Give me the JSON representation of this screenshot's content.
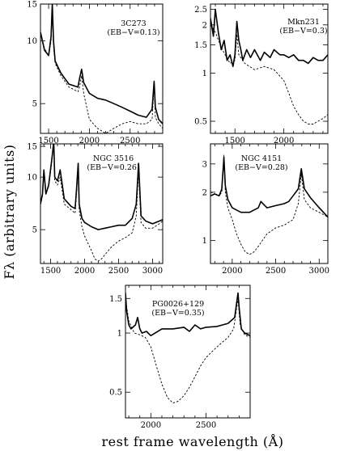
{
  "figure": {
    "ylabel": "Fλ (arbitrary units)",
    "xlabel": "rest frame wavelength (Å)"
  },
  "chart_data": [
    {
      "type": "line",
      "scale": "log-y",
      "object": "3C273",
      "ebv_text": "(EB−V=0.13)",
      "xlim": [
        1400,
        2900
      ],
      "ylim": [
        3.6,
        15
      ],
      "xticks": [
        1500,
        2000,
        2500
      ],
      "yticks": [
        5,
        10,
        15
      ],
      "series": [
        {
          "style": "solid",
          "x": [
            1400,
            1450,
            1500,
            1530,
            1545,
            1560,
            1580,
            1650,
            1750,
            1860,
            1880,
            1905,
            1930,
            2000,
            2100,
            2200,
            2300,
            2400,
            2500,
            2600,
            2700,
            2770,
            2795,
            2810,
            2850,
            2900
          ],
          "y": [
            11,
            9,
            8.5,
            10.5,
            15,
            10,
            8,
            7,
            6.2,
            6,
            6.6,
            7.3,
            6.3,
            5.6,
            5.3,
            5.2,
            5.0,
            4.8,
            4.6,
            4.4,
            4.3,
            4.7,
            6.4,
            4.8,
            4.2,
            4.0
          ]
        },
        {
          "style": "dashed",
          "x": [
            1400,
            1450,
            1500,
            1530,
            1545,
            1560,
            1580,
            1650,
            1750,
            1860,
            1880,
            1905,
            1930,
            2000,
            2100,
            2200,
            2300,
            2400,
            2500,
            2600,
            2700,
            2770,
            2795,
            2810,
            2850,
            2900
          ],
          "y": [
            11,
            9.2,
            8.5,
            10,
            14.5,
            9.5,
            7.8,
            6.8,
            6,
            5.7,
            6,
            6.8,
            5.6,
            4.2,
            3.8,
            3.6,
            3.8,
            4,
            4.1,
            4.0,
            4,
            4.2,
            6.2,
            4.3,
            4.0,
            3.8
          ]
        }
      ]
    },
    {
      "type": "line",
      "scale": "log-y",
      "object": "Mkn231",
      "ebv_text": "(EB−V=0.3)",
      "xlim": [
        1250,
        2450
      ],
      "ylim": [
        0.42,
        2.7
      ],
      "xticks": [
        1500,
        2000
      ],
      "yticks": [
        0.5,
        1,
        1.5,
        2,
        2.5
      ],
      "series": [
        {
          "style": "solid",
          "x": [
            1250,
            1280,
            1300,
            1330,
            1360,
            1390,
            1420,
            1450,
            1480,
            1500,
            1520,
            1540,
            1560,
            1580,
            1620,
            1660,
            1700,
            1760,
            1800,
            1860,
            1900,
            1960,
            2000,
            2050,
            2100,
            2150,
            2200,
            2250,
            2300,
            2350,
            2400,
            2450
          ],
          "y": [
            2.2,
            1.7,
            2.5,
            1.8,
            1.4,
            1.6,
            1.2,
            1.3,
            1.1,
            1.3,
            2.1,
            1.6,
            1.4,
            1.2,
            1.4,
            1.25,
            1.4,
            1.2,
            1.35,
            1.25,
            1.4,
            1.3,
            1.3,
            1.25,
            1.3,
            1.2,
            1.2,
            1.15,
            1.25,
            1.2,
            1.2,
            1.3
          ]
        },
        {
          "style": "dashed",
          "x": [
            1250,
            1300,
            1360,
            1400,
            1450,
            1500,
            1520,
            1540,
            1600,
            1700,
            1800,
            1900,
            2000,
            2050,
            2100,
            2150,
            2200,
            2250,
            2300,
            2350,
            2400,
            2450
          ],
          "y": [
            2.0,
            1.8,
            1.45,
            1.3,
            1.15,
            1.2,
            1.75,
            1.3,
            1.15,
            1.05,
            1.1,
            1.05,
            0.9,
            0.75,
            0.62,
            0.55,
            0.5,
            0.48,
            0.48,
            0.5,
            0.52,
            0.55
          ]
        }
      ]
    },
    {
      "type": "line",
      "scale": "log-y",
      "object": "NGC 3516",
      "ebv_text": "(EB−V=0.26)",
      "xlim": [
        1350,
        3150
      ],
      "ylim": [
        3.2,
        15.5
      ],
      "xticks": [
        1500,
        2000,
        2500,
        3000
      ],
      "yticks": [
        5,
        10,
        15
      ],
      "series": [
        {
          "style": "solid",
          "x": [
            1350,
            1380,
            1400,
            1430,
            1470,
            1520,
            1545,
            1560,
            1600,
            1640,
            1700,
            1800,
            1860,
            1880,
            1905,
            1920,
            1960,
            2000,
            2100,
            2200,
            2300,
            2400,
            2500,
            2600,
            2700,
            2760,
            2795,
            2830,
            2900,
            3000,
            3100,
            3150
          ],
          "y": [
            7,
            8,
            11,
            8,
            9,
            13,
            16,
            10,
            9.5,
            11,
            7.5,
            6.8,
            6.6,
            8.5,
            12,
            7,
            5.8,
            5.5,
            5.2,
            5.0,
            5.1,
            5.2,
            5.3,
            5.3,
            5.8,
            7,
            12,
            6,
            5.6,
            5.4,
            5.6,
            5.7
          ]
        },
        {
          "style": "dashed",
          "x": [
            1350,
            1380,
            1400,
            1430,
            1470,
            1520,
            1545,
            1560,
            1600,
            1640,
            1700,
            1800,
            1860,
            1880,
            1905,
            1920,
            1960,
            2000,
            2100,
            2150,
            2200,
            2250,
            2300,
            2400,
            2500,
            2600,
            2700,
            2760,
            2795,
            2830,
            2900,
            3000,
            3100,
            3150
          ],
          "y": [
            7,
            7.8,
            10.5,
            8,
            8.8,
            12.5,
            16,
            9.5,
            9,
            10,
            7,
            6.5,
            6.2,
            8,
            11.5,
            6.5,
            5.2,
            4.6,
            3.8,
            3.4,
            3.3,
            3.4,
            3.6,
            4.0,
            4.3,
            4.5,
            4.8,
            6,
            11,
            5.5,
            5.1,
            5.1,
            5.4,
            5.6
          ]
        }
      ]
    },
    {
      "type": "line",
      "scale": "log-y",
      "object": "NGC 4151",
      "ebv_text": "(EB−V=0.28)",
      "xlim": [
        1750,
        3100
      ],
      "ylim": [
        0.72,
        4.0
      ],
      "xticks": [
        2000,
        2500,
        3000
      ],
      "yticks": [
        1,
        2,
        3
      ],
      "series": [
        {
          "style": "solid",
          "x": [
            1750,
            1800,
            1850,
            1880,
            1905,
            1920,
            1950,
            2000,
            2100,
            2200,
            2300,
            2330,
            2400,
            2500,
            2600,
            2650,
            2700,
            2760,
            2795,
            2830,
            2900,
            3000,
            3100
          ],
          "y": [
            1.9,
            1.95,
            1.9,
            2.1,
            3.3,
            2.2,
            1.8,
            1.6,
            1.5,
            1.5,
            1.6,
            1.75,
            1.6,
            1.65,
            1.7,
            1.75,
            1.9,
            2.1,
            2.8,
            2.1,
            1.85,
            1.6,
            1.4
          ]
        },
        {
          "style": "dashed",
          "x": [
            1750,
            1800,
            1850,
            1880,
            1905,
            1920,
            1950,
            2000,
            2050,
            2100,
            2150,
            2200,
            2250,
            2300,
            2400,
            2500,
            2600,
            2700,
            2760,
            2795,
            2830,
            2900,
            3000,
            3100
          ],
          "y": [
            2.0,
            1.95,
            1.9,
            2.0,
            3.4,
            2.0,
            1.6,
            1.35,
            1.1,
            0.95,
            0.85,
            0.82,
            0.85,
            0.92,
            1.1,
            1.2,
            1.25,
            1.35,
            1.7,
            2.6,
            1.8,
            1.6,
            1.5,
            1.4
          ]
        }
      ]
    },
    {
      "type": "line",
      "scale": "log-y",
      "object": "PG0026+129",
      "ebv_text": "(EB−V=0.35)",
      "xlim": [
        1770,
        2900
      ],
      "ylim": [
        0.37,
        1.75
      ],
      "xticks": [
        2000,
        2500
      ],
      "yticks": [
        0.5,
        1,
        1.5
      ],
      "series": [
        {
          "style": "solid",
          "x": [
            1770,
            1780,
            1800,
            1820,
            1860,
            1880,
            1900,
            1920,
            1960,
            2000,
            2100,
            2200,
            2300,
            2350,
            2400,
            2450,
            2500,
            2600,
            2700,
            2760,
            2790,
            2800,
            2820,
            2850,
            2900
          ],
          "y": [
            1.6,
            1.3,
            1.1,
            1.05,
            1.1,
            1.2,
            1.05,
            1.0,
            1.02,
            0.97,
            1.05,
            1.05,
            1.07,
            1.02,
            1.1,
            1.05,
            1.07,
            1.08,
            1.12,
            1.2,
            1.6,
            1.35,
            1.05,
            1.0,
            0.97
          ]
        },
        {
          "style": "dashed",
          "x": [
            1770,
            1800,
            1850,
            1900,
            1950,
            2000,
            2050,
            2100,
            2150,
            2200,
            2250,
            2300,
            2350,
            2400,
            2450,
            2500,
            2550,
            2600,
            2650,
            2700,
            2750,
            2790,
            2810,
            2850,
            2900
          ],
          "y": [
            1.5,
            1.15,
            1.0,
            0.98,
            0.95,
            0.85,
            0.68,
            0.55,
            0.47,
            0.44,
            0.45,
            0.48,
            0.53,
            0.6,
            0.68,
            0.75,
            0.8,
            0.85,
            0.9,
            0.95,
            1.05,
            1.5,
            1.1,
            0.98,
            0.95
          ]
        }
      ]
    }
  ]
}
